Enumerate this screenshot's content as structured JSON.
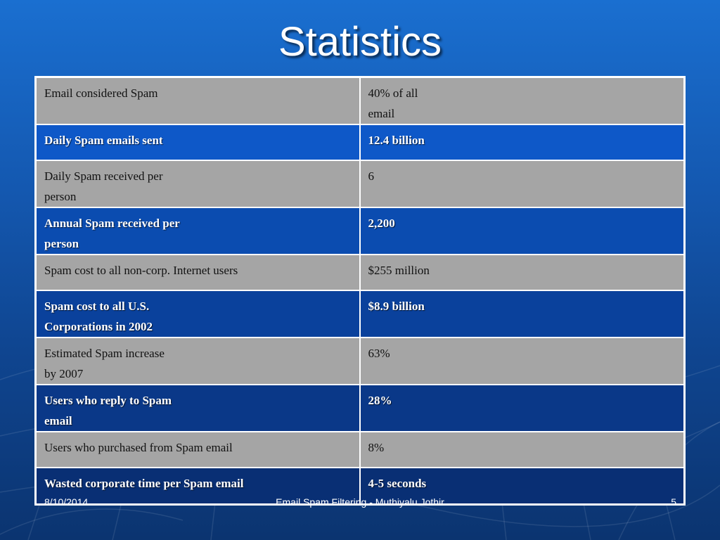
{
  "slide": {
    "title": "Statistics"
  },
  "table": {
    "rows": [
      {
        "label": [
          "Email considered Spam"
        ],
        "value": [
          "40% of all",
          "email"
        ]
      },
      {
        "label": [
          "Daily Spam emails sent"
        ],
        "value": [
          "12.4 billion"
        ]
      },
      {
        "label": [
          "Daily Spam received per",
          "person"
        ],
        "value": [
          "6"
        ]
      },
      {
        "label": [
          "Annual Spam received per",
          "person"
        ],
        "value": [
          "2,200"
        ]
      },
      {
        "label": [
          "Spam cost to all non-corp. Internet users"
        ],
        "value": [
          "$255 million"
        ]
      },
      {
        "label": [
          "Spam cost to all U.S.",
          "Corporations in 2002"
        ],
        "value": [
          "$8.9 billion"
        ]
      },
      {
        "label": [
          "Estimated Spam increase",
          "by 2007"
        ],
        "value": [
          "63%"
        ]
      },
      {
        "label": [
          "Users who reply to Spam",
          "email"
        ],
        "value": [
          "28%"
        ]
      },
      {
        "label": [
          "Users who purchased from Spam email"
        ],
        "value": [
          "8%"
        ]
      },
      {
        "label": [
          "Wasted corporate time per Spam email"
        ],
        "value": [
          "4-5 seconds"
        ]
      }
    ]
  },
  "footer": {
    "date": "8/10/2014",
    "center_text": "Email Spam Filtering - Muthiyalu Jothir",
    "page_number": "5"
  },
  "colors": {
    "background_top": "#1a6fd0",
    "background_bottom": "#0b3470",
    "gray_row": "#a5a5a5",
    "border": "#ffffff"
  }
}
